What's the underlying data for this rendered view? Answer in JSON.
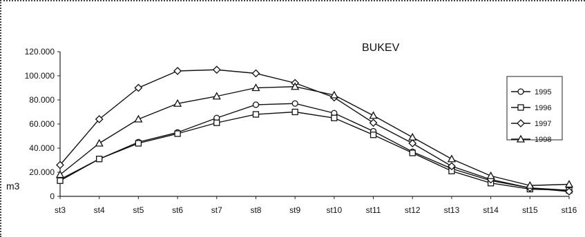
{
  "chart_data": {
    "type": "line",
    "title": "BUKEV",
    "ylabel": "m3",
    "xlabel": "",
    "ylim": [
      0,
      120000
    ],
    "yticks": [
      0,
      20000,
      40000,
      60000,
      80000,
      100000,
      120000
    ],
    "ytick_labels": [
      "0",
      "20.000",
      "40.000",
      "60.000",
      "80.000",
      "100.000",
      "120.000"
    ],
    "categories": [
      "st3",
      "st4",
      "st5",
      "st6",
      "st7",
      "st8",
      "st9",
      "st10",
      "st11",
      "st12",
      "st13",
      "st14",
      "st15",
      "st16"
    ],
    "grid": false,
    "legend_position": "right",
    "series": [
      {
        "name": "1995",
        "marker": "circle",
        "values": [
          14000,
          31000,
          45000,
          53000,
          65000,
          76000,
          77000,
          69000,
          54000,
          37000,
          23000,
          13000,
          7000,
          5000
        ]
      },
      {
        "name": "1996",
        "marker": "square",
        "values": [
          13000,
          31000,
          44000,
          52000,
          61000,
          68000,
          70000,
          65000,
          51000,
          36000,
          21000,
          11000,
          6000,
          5000
        ]
      },
      {
        "name": "1997",
        "marker": "diamond",
        "values": [
          26000,
          64000,
          90000,
          104000,
          105000,
          102000,
          94000,
          82000,
          61000,
          44000,
          25000,
          14000,
          7000,
          4000
        ]
      },
      {
        "name": "1998",
        "marker": "triangle",
        "values": [
          18000,
          44000,
          64000,
          77000,
          83000,
          90000,
          91000,
          84000,
          67000,
          49000,
          31000,
          17000,
          9000,
          10000
        ]
      }
    ]
  }
}
